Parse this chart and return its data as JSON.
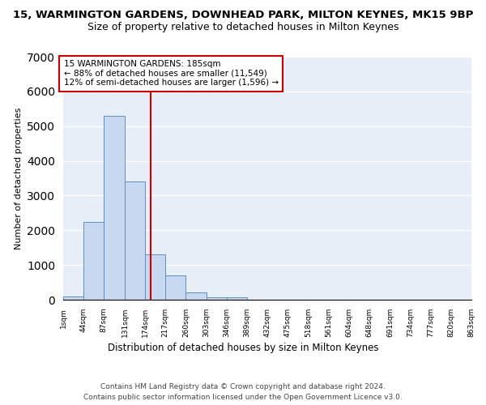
{
  "title": "15, WARMINGTON GARDENS, DOWNHEAD PARK, MILTON KEYNES, MK15 9BP",
  "subtitle": "Size of property relative to detached houses in Milton Keynes",
  "xlabel": "Distribution of detached houses by size in Milton Keynes",
  "ylabel": "Number of detached properties",
  "footer_line1": "Contains HM Land Registry data © Crown copyright and database right 2024.",
  "footer_line2": "Contains public sector information licensed under the Open Government Licence v3.0.",
  "annotation_line1": "15 WARMINGTON GARDENS: 185sqm",
  "annotation_line2": "← 88% of detached houses are smaller (11,549)",
  "annotation_line3": "12% of semi-detached houses are larger (1,596) →",
  "bar_color": "#c8d8f0",
  "bar_edge_color": "#6090c0",
  "vline_color": "#cc0000",
  "vline_x": 185,
  "annotation_box_edge_color": "#cc0000",
  "ylim": [
    0,
    7000
  ],
  "yticks": [
    0,
    1000,
    2000,
    3000,
    4000,
    5000,
    6000,
    7000
  ],
  "bin_edges": [
    1,
    44,
    87,
    131,
    174,
    217,
    260,
    303,
    346,
    389,
    432,
    475,
    518,
    561,
    604,
    648,
    691,
    734,
    777,
    820,
    863
  ],
  "bar_heights": [
    100,
    2250,
    5300,
    3400,
    1300,
    700,
    200,
    80,
    80,
    0,
    0,
    0,
    0,
    0,
    0,
    0,
    0,
    0,
    0,
    0
  ],
  "tick_labels": [
    "1sqm",
    "44sqm",
    "87sqm",
    "131sqm",
    "174sqm",
    "217sqm",
    "260sqm",
    "303sqm",
    "346sqm",
    "389sqm",
    "432sqm",
    "475sqm",
    "518sqm",
    "561sqm",
    "604sqm",
    "648sqm",
    "691sqm",
    "734sqm",
    "777sqm",
    "820sqm",
    "863sqm"
  ],
  "background_color": "#e8eef8",
  "grid_color": "#ffffff",
  "title_fontsize": 9.5,
  "subtitle_fontsize": 9,
  "ylabel_fontsize": 8,
  "xlabel_fontsize": 8.5,
  "tick_fontsize": 6.5,
  "footer_fontsize": 6.5,
  "annotation_fontsize": 7.5
}
